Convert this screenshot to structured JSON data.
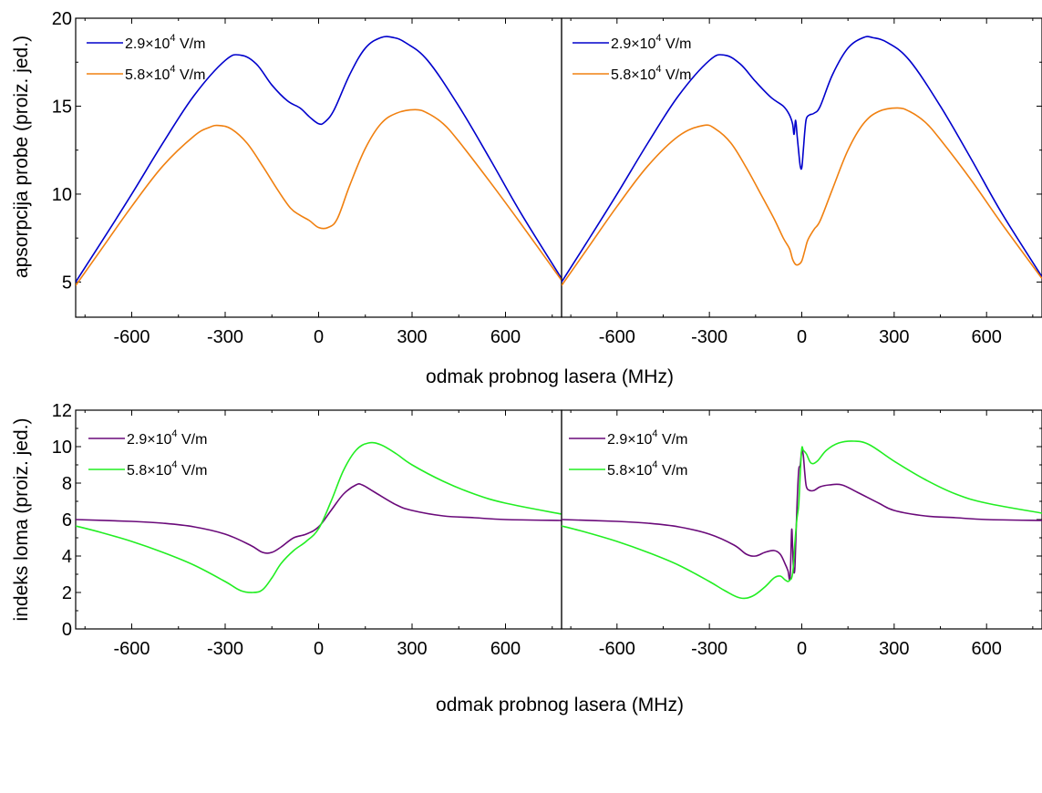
{
  "chart_data": [
    {
      "id": "absorption-left",
      "type": "line",
      "ylabel": "apsorpcija probe (proiz. jed.)",
      "xlabel": "",
      "xlim": [
        -780,
        780
      ],
      "ylim": [
        3,
        20
      ],
      "xticks": [
        "-600",
        "-300",
        "0",
        "300",
        "600"
      ],
      "yticks": [
        "5",
        "10",
        "15",
        "20"
      ],
      "legend": {
        "placement": "top-left"
      },
      "series": [
        {
          "name": "2.9×10^4 V/m",
          "color": "#0000cc",
          "x": [
            -780,
            -700,
            -600,
            -500,
            -400,
            -300,
            -250,
            -200,
            -150,
            -100,
            -60,
            -30,
            0,
            20,
            50,
            100,
            150,
            200,
            240,
            280,
            350,
            450,
            550,
            650,
            780
          ],
          "y": [
            5.0,
            7.2,
            10.0,
            12.9,
            15.6,
            17.6,
            17.9,
            17.4,
            16.2,
            15.3,
            14.9,
            14.4,
            14.0,
            14.1,
            14.8,
            16.8,
            18.3,
            18.9,
            18.9,
            18.6,
            17.6,
            15.0,
            12.0,
            8.9,
            5.2
          ]
        },
        {
          "name": "5.8×10^4 V/m",
          "color": "#f08010",
          "x": [
            -780,
            -700,
            -600,
            -500,
            -400,
            -350,
            -320,
            -280,
            -230,
            -180,
            -130,
            -90,
            -60,
            -30,
            0,
            30,
            60,
            100,
            150,
            200,
            250,
            310,
            350,
            400,
            450,
            550,
            650,
            780
          ],
          "y": [
            4.8,
            6.8,
            9.3,
            11.6,
            13.3,
            13.8,
            13.9,
            13.7,
            12.9,
            11.6,
            10.2,
            9.2,
            8.8,
            8.5,
            8.1,
            8.1,
            8.6,
            10.5,
            12.6,
            14.0,
            14.6,
            14.8,
            14.6,
            14.0,
            13.0,
            10.7,
            8.3,
            5.1
          ]
        }
      ]
    },
    {
      "id": "absorption-right",
      "type": "line",
      "xlabel": "",
      "ylabel": "",
      "xlim": [
        -780,
        780
      ],
      "ylim": [
        3,
        20
      ],
      "xticks": [
        "-600",
        "-300",
        "0",
        "300",
        "600"
      ],
      "legend": {
        "placement": "top-left"
      },
      "series": [
        {
          "name": "2.9×10^4 V/m",
          "color": "#0000cc",
          "x": [
            -780,
            -700,
            -600,
            -500,
            -400,
            -300,
            -250,
            -200,
            -150,
            -100,
            -60,
            -40,
            -30,
            -25,
            -20,
            -15,
            -10,
            -5,
            0,
            5,
            10,
            15,
            25,
            40,
            60,
            100,
            150,
            200,
            230,
            280,
            350,
            450,
            550,
            650,
            780
          ],
          "y": [
            5.0,
            7.2,
            10.0,
            12.9,
            15.6,
            17.6,
            17.9,
            17.4,
            16.4,
            15.5,
            15.0,
            14.5,
            14.0,
            13.4,
            14.2,
            13.3,
            12.4,
            11.6,
            11.5,
            12.5,
            13.6,
            14.3,
            14.5,
            14.6,
            15.0,
            16.8,
            18.3,
            18.9,
            18.9,
            18.6,
            17.6,
            15.0,
            12.0,
            8.9,
            5.3
          ]
        },
        {
          "name": "5.8×10^4 V/m",
          "color": "#f08010",
          "x": [
            -780,
            -700,
            -600,
            -500,
            -400,
            -320,
            -280,
            -230,
            -180,
            -130,
            -90,
            -60,
            -40,
            -30,
            -20,
            -10,
            0,
            10,
            20,
            40,
            60,
            100,
            150,
            200,
            250,
            310,
            350,
            400,
            450,
            550,
            650,
            780
          ],
          "y": [
            4.8,
            6.8,
            9.3,
            11.6,
            13.3,
            13.9,
            13.7,
            12.9,
            11.5,
            9.9,
            8.6,
            7.5,
            6.9,
            6.3,
            6.0,
            6.0,
            6.2,
            6.8,
            7.4,
            8.0,
            8.5,
            10.3,
            12.5,
            14.0,
            14.7,
            14.9,
            14.7,
            14.1,
            13.1,
            10.8,
            8.3,
            5.2
          ]
        }
      ]
    },
    {
      "id": "refractive-left",
      "type": "line",
      "ylabel": "indeks loma (proiz. jed.)",
      "xlabel": "",
      "xlim": [
        -780,
        780
      ],
      "ylim": [
        0,
        12
      ],
      "xticks": [
        "-600",
        "-300",
        "0",
        "300",
        "600"
      ],
      "yticks": [
        "0",
        "2",
        "4",
        "6",
        "8",
        "10",
        "12"
      ],
      "legend": {
        "placement": "top-left"
      },
      "series": [
        {
          "name": "2.9×10^4 V/m",
          "color": "#6a0a7a",
          "x": [
            -780,
            -600,
            -500,
            -400,
            -300,
            -220,
            -180,
            -150,
            -120,
            -80,
            -40,
            0,
            40,
            80,
            120,
            140,
            180,
            250,
            300,
            400,
            500,
            600,
            780
          ],
          "y": [
            6.0,
            5.9,
            5.8,
            5.6,
            5.2,
            4.6,
            4.2,
            4.2,
            4.5,
            5.0,
            5.2,
            5.6,
            6.5,
            7.4,
            7.9,
            7.9,
            7.5,
            6.8,
            6.5,
            6.2,
            6.1,
            6.0,
            5.95
          ]
        },
        {
          "name": "5.8×10^4 V/m",
          "color": "#22ee22",
          "x": [
            -780,
            -700,
            -600,
            -500,
            -400,
            -300,
            -250,
            -210,
            -180,
            -150,
            -120,
            -80,
            -40,
            0,
            40,
            80,
            120,
            160,
            200,
            250,
            300,
            400,
            500,
            600,
            780
          ],
          "y": [
            5.65,
            5.3,
            4.8,
            4.2,
            3.5,
            2.6,
            2.1,
            2.0,
            2.15,
            2.8,
            3.6,
            4.3,
            4.8,
            5.5,
            7.0,
            8.7,
            9.8,
            10.2,
            10.1,
            9.6,
            9.0,
            8.1,
            7.4,
            6.9,
            6.3
          ]
        }
      ]
    },
    {
      "id": "refractive-right",
      "type": "line",
      "xlabel": "",
      "ylabel": "",
      "xlim": [
        -780,
        780
      ],
      "ylim": [
        0,
        12
      ],
      "xticks": [
        "-600",
        "-300",
        "0",
        "300",
        "600"
      ],
      "legend": {
        "placement": "top-left"
      },
      "series": [
        {
          "name": "2.9×10^4 V/m",
          "color": "#6a0a7a",
          "x": [
            -780,
            -600,
            -500,
            -400,
            -300,
            -220,
            -180,
            -150,
            -120,
            -90,
            -70,
            -55,
            -45,
            -38,
            -33,
            -30,
            -27,
            -23,
            -20,
            -15,
            -10,
            -5,
            0,
            5,
            10,
            15,
            25,
            40,
            60,
            90,
            130,
            180,
            250,
            300,
            400,
            500,
            600,
            780
          ],
          "y": [
            6.0,
            5.9,
            5.8,
            5.6,
            5.2,
            4.6,
            4.1,
            4.0,
            4.2,
            4.3,
            4.1,
            3.6,
            3.2,
            2.8,
            5.4,
            4.6,
            3.3,
            3.2,
            4.5,
            7.0,
            8.7,
            9.0,
            9.8,
            9.5,
            8.5,
            7.8,
            7.6,
            7.6,
            7.8,
            7.9,
            7.9,
            7.5,
            6.9,
            6.5,
            6.2,
            6.1,
            6.0,
            5.95
          ]
        },
        {
          "name": "5.8×10^4 V/m",
          "color": "#22ee22",
          "x": [
            -780,
            -700,
            -600,
            -500,
            -400,
            -300,
            -250,
            -200,
            -160,
            -120,
            -90,
            -70,
            -55,
            -45,
            -38,
            -33,
            -28,
            -22,
            -16,
            -10,
            -5,
            0,
            5,
            15,
            30,
            50,
            80,
            120,
            170,
            220,
            300,
            400,
            500,
            600,
            780
          ],
          "y": [
            5.65,
            5.3,
            4.8,
            4.2,
            3.5,
            2.6,
            2.1,
            1.7,
            1.8,
            2.3,
            2.8,
            2.9,
            2.7,
            2.6,
            2.7,
            2.8,
            3.3,
            4.8,
            6.0,
            6.8,
            8.5,
            9.9,
            9.8,
            9.6,
            9.1,
            9.2,
            9.8,
            10.2,
            10.3,
            10.1,
            9.2,
            8.2,
            7.4,
            6.9,
            6.35
          ]
        }
      ]
    }
  ],
  "labels": {
    "xlabel_top": "odmak probnog lasera (MHz)",
    "xlabel_bottom": "odmak probnog lasera (MHz)",
    "ylabel_top": "apsorpcija probe (proiz. jed.)",
    "ylabel_bottom": "indeks loma (proiz. jed.)",
    "legend_unit": "V/m"
  }
}
